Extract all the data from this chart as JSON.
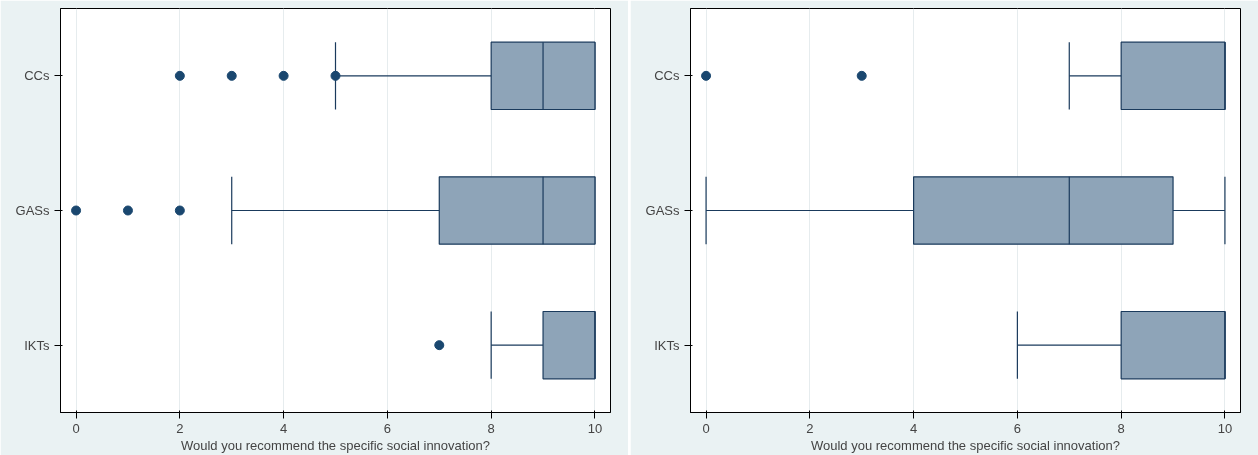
{
  "chart_data": [
    {
      "type": "box",
      "orientation": "horizontal",
      "categories": [
        "CCs",
        "GASs",
        "IKTs"
      ],
      "color": "#8ea4b8",
      "xlabel": "Would you recommend the specific social innovation?",
      "xlim": [
        -0.3,
        10.3
      ],
      "xticks": [
        0,
        2,
        4,
        6,
        8,
        10
      ],
      "grid": "x",
      "marker": "circle",
      "boxes": [
        {
          "low": 5,
          "q1": 8,
          "median": 9,
          "q3": 10,
          "high": 10,
          "outliers": [
            2,
            3,
            4,
            5
          ]
        },
        {
          "low": 3,
          "q1": 7,
          "median": 9,
          "q3": 10,
          "high": 10,
          "outliers": [
            0,
            1,
            2
          ]
        },
        {
          "low": 8,
          "q1": 9,
          "median": 10,
          "q3": 10,
          "high": 10,
          "outliers": [
            7
          ]
        }
      ]
    },
    {
      "type": "box",
      "orientation": "horizontal",
      "categories": [
        "CCs",
        "GASs",
        "IKTs"
      ],
      "color": "#8ea4b8",
      "xlabel": "Would you recommend the specific social innovation?",
      "xlim": [
        -0.3,
        10.3
      ],
      "xticks": [
        0,
        2,
        4,
        6,
        8,
        10
      ],
      "grid": "x",
      "marker": "circle",
      "boxes": [
        {
          "low": 7,
          "q1": 8,
          "median": 10,
          "q3": 10,
          "high": 10,
          "outliers": [
            0,
            3
          ]
        },
        {
          "low": 0,
          "q1": 4,
          "median": 7,
          "q3": 9,
          "high": 10
        },
        {
          "low": 6,
          "q1": 8,
          "median": 10,
          "q3": 10,
          "high": 10
        }
      ]
    }
  ]
}
